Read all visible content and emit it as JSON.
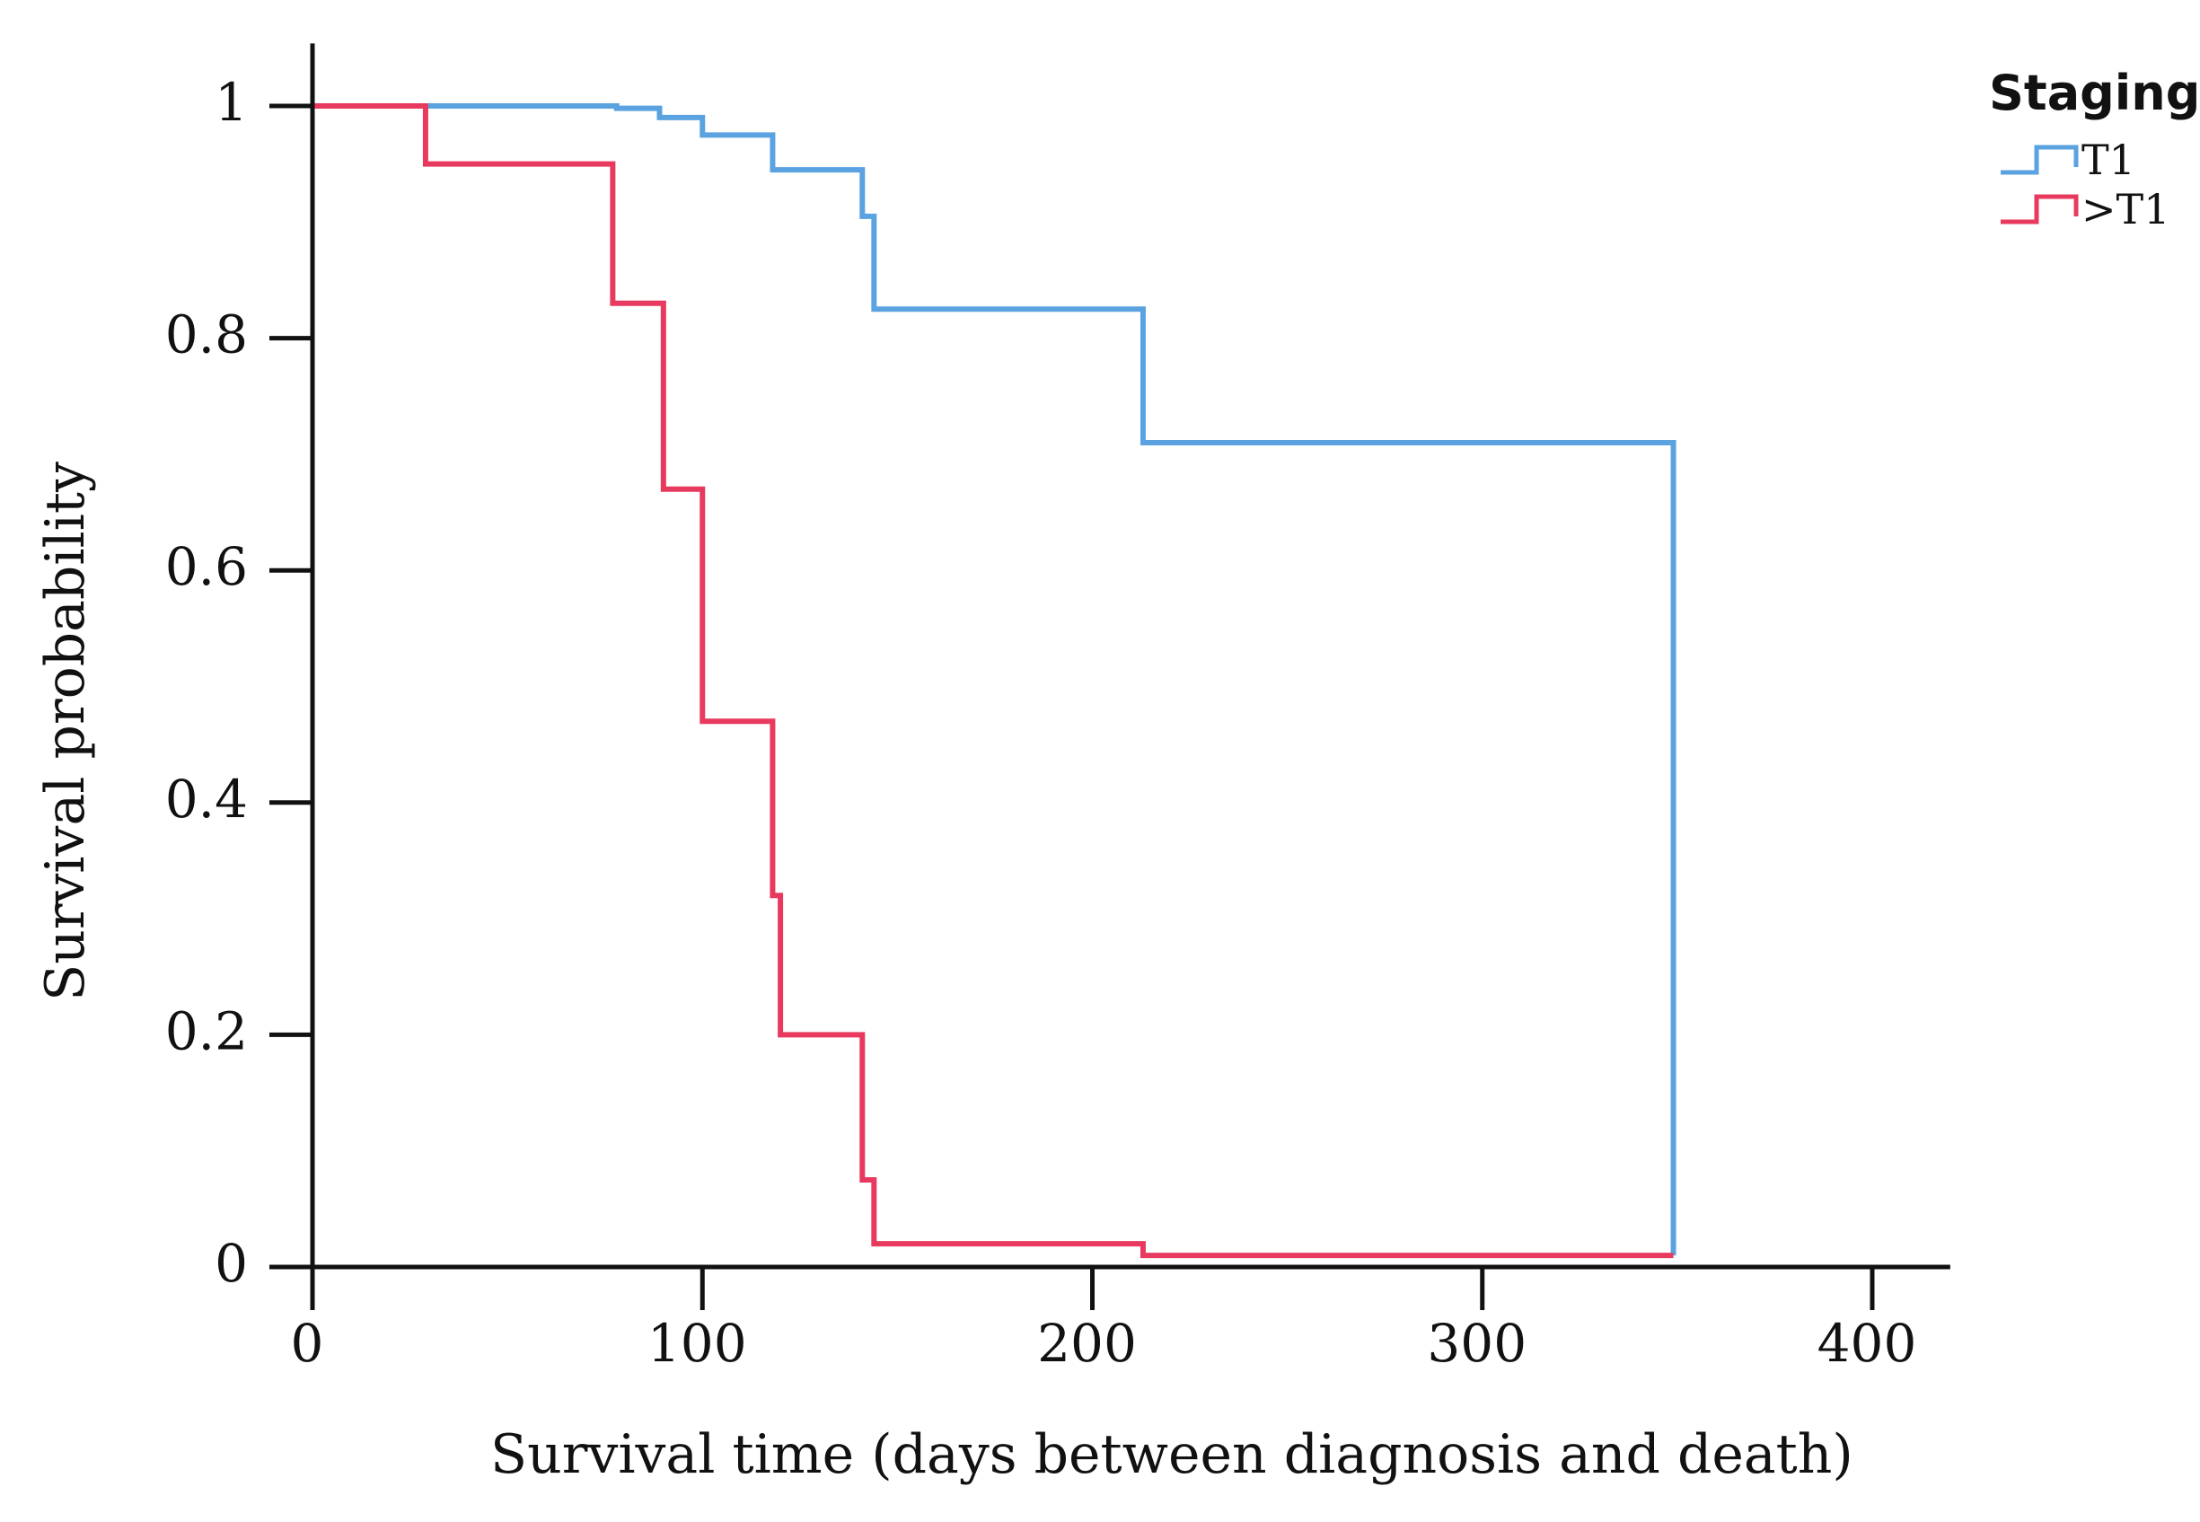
{
  "chart_data": {
    "type": "line",
    "step": true,
    "title": "",
    "xlabel": "Survival time (days between diagnosis and death)",
    "ylabel": "Survival probability",
    "xlim": [
      0,
      420
    ],
    "ylim": [
      0,
      1.05
    ],
    "xticks": [
      0,
      100,
      200,
      300,
      400
    ],
    "xtick_labels": [
      "0",
      "100",
      "200",
      "300",
      "400"
    ],
    "yticks": [
      0,
      0.2,
      0.4,
      0.6,
      0.8,
      1
    ],
    "ytick_labels": [
      "0",
      "0.2",
      "0.4",
      "0.6",
      "0.8",
      "1"
    ],
    "grid": false,
    "legend": {
      "title": "Staging",
      "placement": "top-right"
    },
    "series": [
      {
        "name": "T1",
        "color": "#5ba3e0",
        "x": [
          0,
          78,
          89,
          100,
          118,
          141,
          144,
          213,
          349
        ],
        "y": [
          1.0,
          0.998,
          0.99,
          0.975,
          0.945,
          0.905,
          0.825,
          0.71,
          0.01
        ]
      },
      {
        "name": ">T1",
        "color": "#e83a5f",
        "x": [
          0,
          29,
          77,
          90,
          100,
          118,
          120,
          141,
          144,
          213
        ],
        "y": [
          1.0,
          0.95,
          0.83,
          0.67,
          0.47,
          0.32,
          0.2,
          0.075,
          0.02,
          0.01
        ],
        "x_end": 349
      }
    ]
  }
}
